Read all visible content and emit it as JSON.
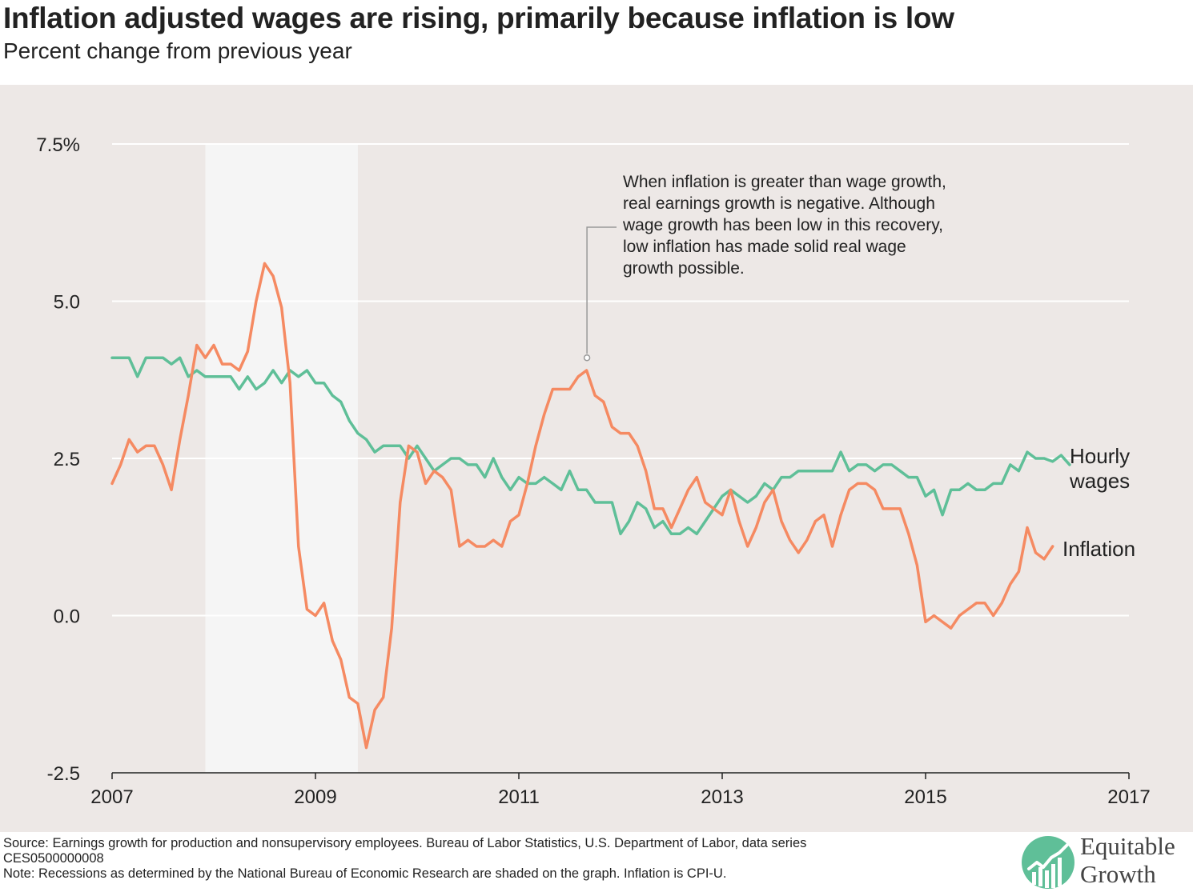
{
  "title": "Inflation adjusted wages are rising, primarily because inflation is low",
  "subtitle": "Percent change from previous year",
  "colors": {
    "panel": "#ede8e6",
    "recession": "#f5f5f5",
    "wages": "#5fbf98",
    "inflation": "#f58a62",
    "grid": "#ffffff"
  },
  "footer": {
    "source_line1": "Source: Earnings growth for production and nonsupervisory employees. Bureau of Labor Statistics, U.S. Department of Labor, data series",
    "source_line2": "CES0500000008",
    "note": "Note: Recessions as determined by the National Bureau of Economic Research are shaded on the graph. Inflation is CPI-U."
  },
  "logo": {
    "line1": "Equitable",
    "line2": "Growth",
    "icon": "equitable-growth-logo-icon"
  },
  "annotation": {
    "lines": [
      "When inflation is greater than wage growth,",
      "real earnings growth is negative. Although",
      "wage growth has been low in this recovery,",
      "low inflation has made solid real wage",
      "growth possible."
    ],
    "point": [
      2011.67,
      4.1
    ]
  },
  "chart_data": {
    "type": "line",
    "title": "Inflation adjusted wages are rising, primarily because inflation is low",
    "subtitle": "Percent change from previous year",
    "xlim": [
      2007,
      2017
    ],
    "ylim": [
      -2.5,
      7.5
    ],
    "x_ticks": [
      2007,
      2009,
      2011,
      2013,
      2015,
      2017
    ],
    "x_tick_labels": [
      "2007",
      "2009",
      "2011",
      "2013",
      "2015",
      "2017"
    ],
    "y_ticks": [
      -2.5,
      0,
      2.5,
      5,
      7.5
    ],
    "y_tick_labels": [
      "-2.5",
      "0.0",
      "2.5",
      "5.0",
      "7.5%"
    ],
    "grid": true,
    "recession": [
      2007.917,
      2009.417
    ],
    "x_start": 2007.0,
    "x_step": 0.08333,
    "series": [
      {
        "name": "Hourly wages",
        "label_lines": [
          "Hourly",
          "wages"
        ],
        "color": "#5fbf98",
        "values": [
          4.1,
          4.1,
          4.1,
          3.8,
          4.1,
          4.1,
          4.1,
          4.0,
          4.1,
          3.8,
          3.9,
          3.8,
          3.8,
          3.8,
          3.8,
          3.6,
          3.8,
          3.6,
          3.7,
          3.9,
          3.7,
          3.9,
          3.8,
          3.9,
          3.7,
          3.7,
          3.5,
          3.4,
          3.1,
          2.9,
          2.8,
          2.6,
          2.7,
          2.7,
          2.7,
          2.5,
          2.7,
          2.5,
          2.3,
          2.4,
          2.5,
          2.5,
          2.4,
          2.4,
          2.2,
          2.5,
          2.2,
          2.0,
          2.2,
          2.1,
          2.1,
          2.2,
          2.1,
          2.0,
          2.3,
          2.0,
          2.0,
          1.8,
          1.8,
          1.8,
          1.3,
          1.5,
          1.8,
          1.7,
          1.4,
          1.5,
          1.3,
          1.3,
          1.4,
          1.3,
          1.5,
          1.7,
          1.9,
          2.0,
          1.9,
          1.8,
          1.9,
          2.1,
          2.0,
          2.2,
          2.2,
          2.3,
          2.3,
          2.3,
          2.3,
          2.3,
          2.6,
          2.3,
          2.4,
          2.4,
          2.3,
          2.4,
          2.4,
          2.3,
          2.2,
          2.2,
          1.9,
          2.0,
          1.6,
          2.0,
          2.0,
          2.1,
          2.0,
          2.0,
          2.1,
          2.1,
          2.4,
          2.3,
          2.6,
          2.5,
          2.5,
          2.45,
          2.55,
          2.4
        ]
      },
      {
        "name": "Inflation",
        "label_lines": [
          "Inflation"
        ],
        "color": "#f58a62",
        "values": [
          2.1,
          2.4,
          2.8,
          2.6,
          2.7,
          2.7,
          2.4,
          2.0,
          2.8,
          3.5,
          4.3,
          4.1,
          4.3,
          4.0,
          4.0,
          3.9,
          4.2,
          5.0,
          5.6,
          5.4,
          4.9,
          3.7,
          1.1,
          0.1,
          0.0,
          0.2,
          -0.4,
          -0.7,
          -1.3,
          -1.4,
          -2.1,
          -1.5,
          -1.3,
          -0.2,
          1.8,
          2.7,
          2.6,
          2.1,
          2.3,
          2.2,
          2.0,
          1.1,
          1.2,
          1.1,
          1.1,
          1.2,
          1.1,
          1.5,
          1.6,
          2.1,
          2.7,
          3.2,
          3.6,
          3.6,
          3.6,
          3.8,
          3.9,
          3.5,
          3.4,
          3.0,
          2.9,
          2.9,
          2.7,
          2.3,
          1.7,
          1.7,
          1.4,
          1.7,
          2.0,
          2.2,
          1.8,
          1.7,
          1.6,
          2.0,
          1.5,
          1.1,
          1.4,
          1.8,
          2.0,
          1.5,
          1.2,
          1.0,
          1.2,
          1.5,
          1.6,
          1.1,
          1.6,
          2.0,
          2.1,
          2.1,
          2.0,
          1.7,
          1.7,
          1.7,
          1.3,
          0.8,
          -0.1,
          0.0,
          -0.1,
          -0.2,
          0.0,
          0.1,
          0.2,
          0.2,
          0.0,
          0.2,
          0.5,
          0.7,
          1.4,
          1.0,
          0.9,
          1.1
        ]
      }
    ]
  }
}
